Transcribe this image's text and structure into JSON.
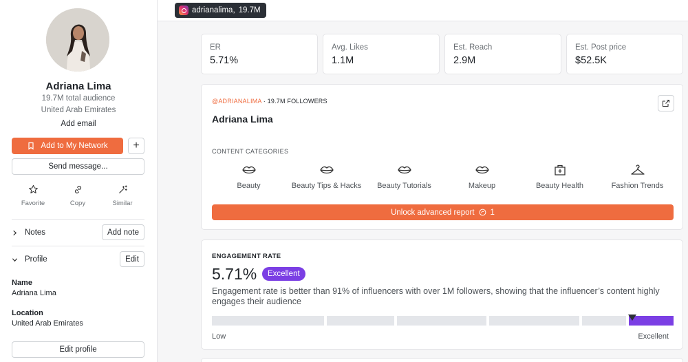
{
  "profile": {
    "name": "Adriana Lima",
    "audience": "19.7M total audience",
    "country": "United Arab Emirates",
    "add_email": "Add email",
    "add_network_label": "Add to My Network",
    "send_message_label": "Send message...",
    "quick_actions": [
      {
        "label": "Favorite",
        "icon": "star-icon"
      },
      {
        "label": "Copy",
        "icon": "link-icon"
      },
      {
        "label": "Similar",
        "icon": "magic-wand-icon"
      }
    ],
    "notes_label": "Notes",
    "add_note_label": "Add note",
    "profile_label": "Profile",
    "edit_label": "Edit",
    "fields": {
      "name_label": "Name",
      "name_value": "Adriana Lima",
      "location_label": "Location",
      "location_value": "United Arab Emirates"
    },
    "edit_profile_label": "Edit profile"
  },
  "topbar": {
    "handle": "adrianalima,",
    "followers": "19.7M"
  },
  "stats": [
    {
      "label": "ER",
      "value": "5.71%"
    },
    {
      "label": "Avg. Likes",
      "value": "1.1M"
    },
    {
      "label": "Est. Reach",
      "value": "2.9M"
    },
    {
      "label": "Est. Post price",
      "value": "$52.5K"
    }
  ],
  "overview": {
    "handle": "@ADRIANALIMA",
    "followers_text": " · 19.7M FOLLOWERS",
    "title": "Adriana Lima",
    "section_label": "CONTENT CATEGORIES",
    "categories": [
      {
        "label": "Beauty",
        "icon": "lips-icon"
      },
      {
        "label": "Beauty Tips & Hacks",
        "icon": "lips-icon"
      },
      {
        "label": "Beauty Tutorials",
        "icon": "lips-icon"
      },
      {
        "label": "Makeup",
        "icon": "lips-icon"
      },
      {
        "label": "Beauty Health",
        "icon": "medical-bag-icon"
      },
      {
        "label": "Fashion Trends",
        "icon": "hanger-icon"
      }
    ],
    "unlock_label": "Unlock advanced report",
    "unlock_count": "1"
  },
  "engagement": {
    "section_label": "ENGAGEMENT RATE",
    "value": "5.71%",
    "badge": "Excellent",
    "description": "Engagement rate is better than 91% of influencers with over 1M followers, showing that the influencer’s content highly engages their audience",
    "scale_low": "Low",
    "scale_high": "Excellent",
    "active_segment": 5,
    "segment_count": 6,
    "marker_percentile": 91
  },
  "colors": {
    "accent": "#ef6c3f",
    "purple": "#7b3fe4"
  }
}
